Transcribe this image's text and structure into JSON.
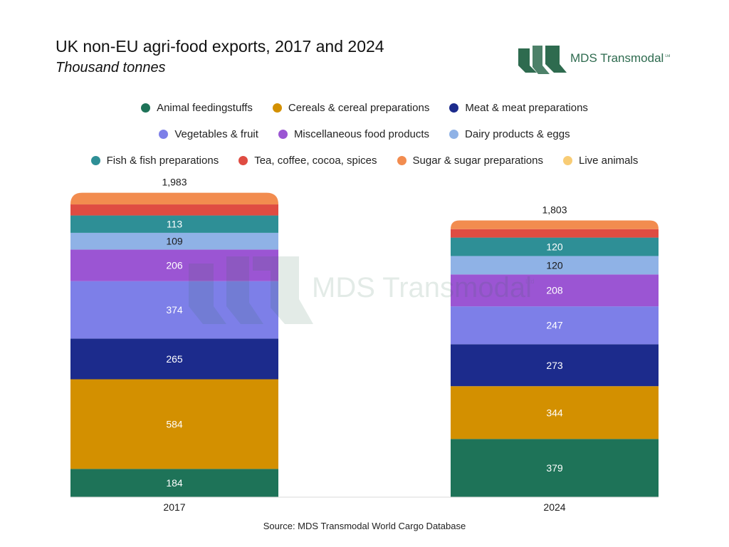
{
  "header": {
    "title": "UK non-EU agri-food exports, 2017 and 2024",
    "subtitle": "Thousand tonnes"
  },
  "logo": {
    "text": "MDS Transmodal",
    "suffix": "Ltd",
    "color": "#2e6b4f"
  },
  "watermark": {
    "text": "MDS Transmodal",
    "suffix": "Ltd"
  },
  "source": "Source: MDS Transmodal World Cargo Database",
  "chart_data": {
    "type": "bar",
    "stacked": true,
    "categories": [
      "2017",
      "2024"
    ],
    "totals": [
      1983,
      1803
    ],
    "total_labels": [
      "1,983",
      "1,803"
    ],
    "series": [
      {
        "name": "Animal feedingstuffs",
        "color": "#1e7358",
        "values": [
          184,
          379
        ],
        "labels": [
          "184",
          "379"
        ]
      },
      {
        "name": "Cereals & cereal preparations",
        "color": "#d39000",
        "values": [
          584,
          344
        ],
        "labels": [
          "584",
          "344"
        ]
      },
      {
        "name": "Meat & meat preparations",
        "color": "#1c2b8c",
        "values": [
          265,
          273
        ],
        "labels": [
          "265",
          "273"
        ]
      },
      {
        "name": "Vegetables & fruit",
        "color": "#7d7fe8",
        "values": [
          374,
          247
        ],
        "labels": [
          "374",
          "247"
        ]
      },
      {
        "name": "Miscellaneous food products",
        "color": "#9b55d3",
        "values": [
          206,
          208
        ],
        "labels": [
          "206",
          "208"
        ]
      },
      {
        "name": "Dairy products & eggs",
        "color": "#8fb2e6",
        "values": [
          109,
          120
        ],
        "labels": [
          "109",
          "120"
        ]
      },
      {
        "name": "Fish & fish preparations",
        "color": "#2e8f96",
        "values": [
          113,
          120
        ],
        "labels": [
          "113",
          "120"
        ]
      },
      {
        "name": "Tea, coffee, cocoa, spices",
        "color": "#df4c42",
        "values": [
          72,
          55
        ],
        "labels": [
          "",
          ""
        ]
      },
      {
        "name": "Sugar & sugar preparations",
        "color": "#f28c4f",
        "values": [
          76,
          57
        ],
        "labels": [
          "",
          ""
        ]
      },
      {
        "name": "Live animals",
        "color": "#f8cc75",
        "values": [
          0,
          0
        ],
        "labels": [
          "",
          ""
        ]
      }
    ],
    "legend_rows": [
      [
        0,
        1,
        2
      ],
      [
        3,
        4,
        5
      ],
      [
        6,
        7,
        8,
        9
      ]
    ],
    "legend_position": "top",
    "grid": false
  }
}
